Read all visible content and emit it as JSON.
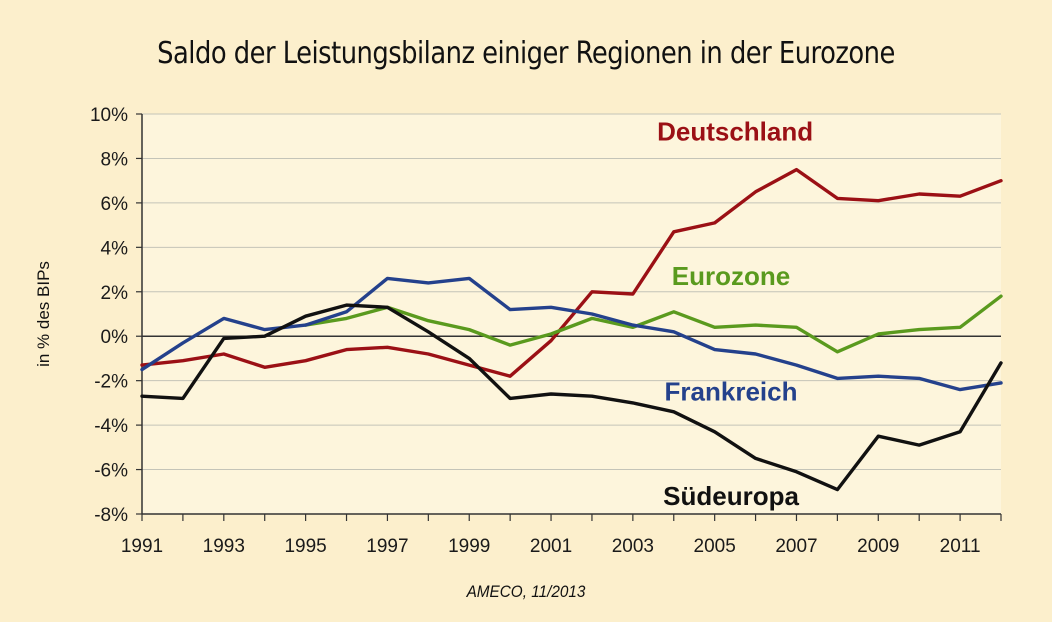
{
  "title": "Saldo der Leistungsbilanz einiger Regionen in der Eurozone",
  "source": "AMECO, 11/2013",
  "chart_data": {
    "type": "line",
    "title": "Saldo der Leistungsbilanz einiger Regionen in der Eurozone",
    "xlabel": "",
    "ylabel": "in % des BIPs",
    "x": [
      1991,
      1992,
      1993,
      1994,
      1995,
      1996,
      1997,
      1998,
      1999,
      2000,
      2001,
      2002,
      2003,
      2004,
      2005,
      2006,
      2007,
      2008,
      2009,
      2010,
      2011,
      2012
    ],
    "xticks": [
      "1991",
      "1993",
      "1995",
      "1997",
      "1999",
      "2001",
      "2003",
      "2005",
      "2007",
      "2009",
      "2011"
    ],
    "xlim": [
      1991,
      2012
    ],
    "ylim": [
      -8,
      10
    ],
    "yticks": [
      "10%",
      "8%",
      "6%",
      "4%",
      "2%",
      "0%",
      "-2%",
      "-4%",
      "-6%",
      "-8%"
    ],
    "grid": "horizontal",
    "legend": "inline labels",
    "series": [
      {
        "name": "Deutschland",
        "color": "#9b1015",
        "values": [
          -1.3,
          -1.1,
          -0.8,
          -1.4,
          -1.1,
          -0.6,
          -0.5,
          -0.8,
          -1.3,
          -1.8,
          -0.2,
          2.0,
          1.9,
          4.7,
          5.1,
          6.5,
          7.5,
          6.2,
          6.1,
          6.4,
          6.3,
          7.0
        ]
      },
      {
        "name": "Eurozone",
        "color": "#5a9a1e",
        "values": [
          null,
          null,
          null,
          null,
          0.5,
          0.8,
          1.3,
          0.7,
          0.3,
          -0.4,
          0.1,
          0.8,
          0.4,
          1.1,
          0.4,
          0.5,
          0.4,
          -0.7,
          0.1,
          0.3,
          0.4,
          1.8
        ]
      },
      {
        "name": "Frankreich",
        "color": "#24418c",
        "values": [
          -1.5,
          -0.3,
          0.8,
          0.3,
          0.5,
          1.1,
          2.6,
          2.4,
          2.6,
          1.2,
          1.3,
          1.0,
          0.5,
          0.2,
          -0.6,
          -0.8,
          -1.3,
          -1.9,
          -1.8,
          -1.9,
          -2.4,
          -2.1
        ]
      },
      {
        "name": "Südeuropa",
        "color": "#111111",
        "values": [
          -2.7,
          -2.8,
          -0.1,
          0.0,
          0.9,
          1.4,
          1.3,
          0.2,
          -1.0,
          -2.8,
          -2.6,
          -2.7,
          -3.0,
          -3.4,
          -4.3,
          -5.5,
          -6.1,
          -6.9,
          -4.5,
          -4.9,
          -4.3,
          -1.2
        ]
      }
    ]
  }
}
